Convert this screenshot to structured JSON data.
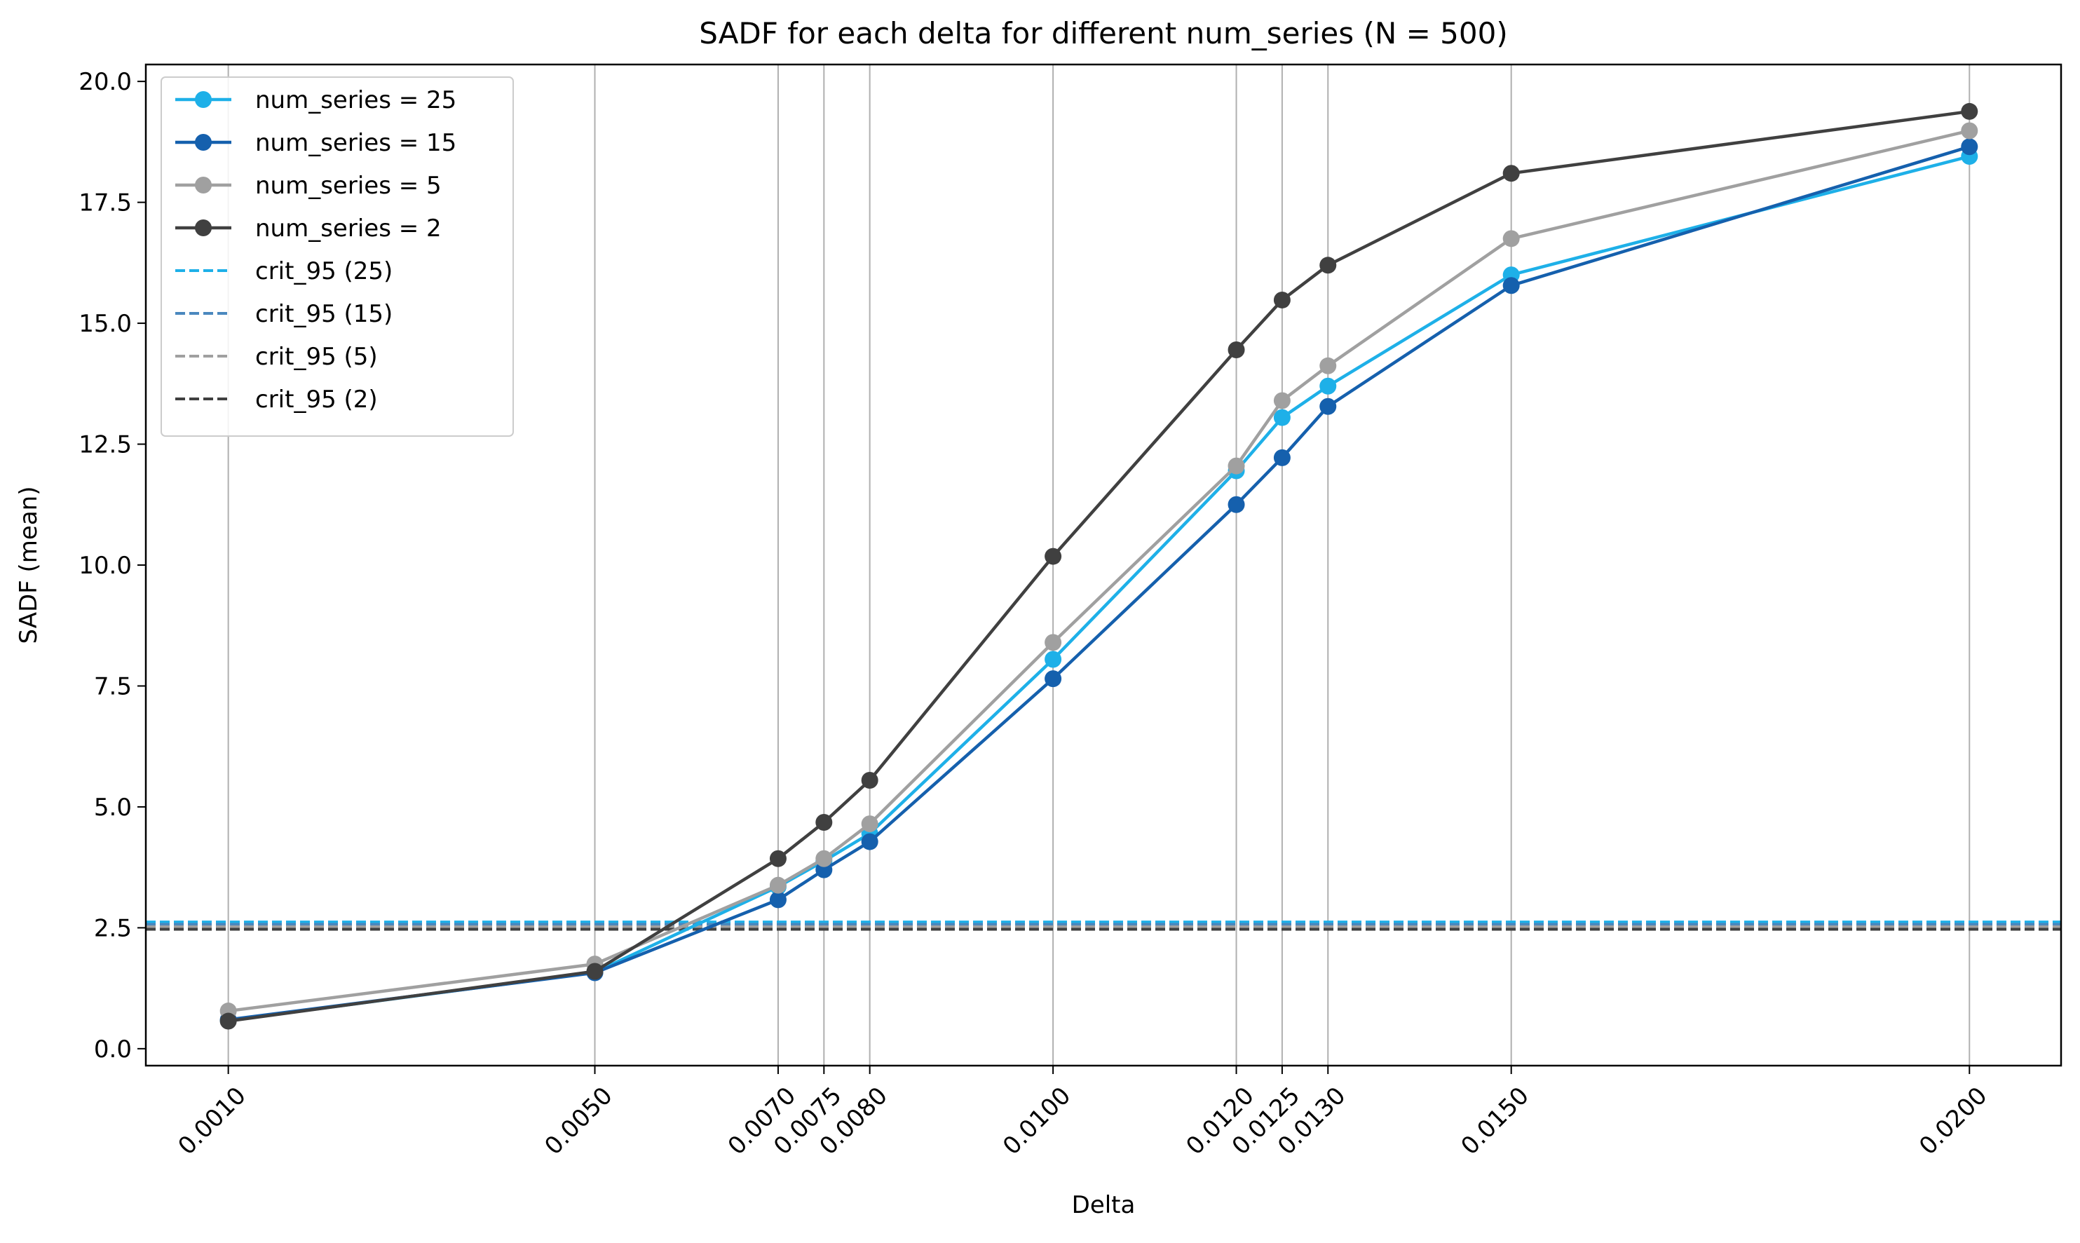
{
  "chart_data": {
    "type": "line",
    "title": "SADF for each delta for different num_series (N = 500)",
    "xlabel": "Delta",
    "ylabel": "SADF (mean)",
    "x": [
      0.001,
      0.005,
      0.007,
      0.0075,
      0.008,
      0.01,
      0.012,
      0.0125,
      0.013,
      0.015,
      0.02
    ],
    "x_tick_labels": [
      "0.0010",
      "0.0050",
      "0.0070",
      "0.0075",
      "0.0080",
      "0.0100",
      "0.0120",
      "0.0125",
      "0.0130",
      "0.0150",
      "0.0200"
    ],
    "xlim": [
      0.0001,
      0.021
    ],
    "ylim": [
      -0.35,
      20.35
    ],
    "y_ticks": [
      0.0,
      2.5,
      5.0,
      7.5,
      10.0,
      12.5,
      15.0,
      17.5,
      20.0
    ],
    "y_tick_labels": [
      "0.0",
      "2.5",
      "5.0",
      "7.5",
      "10.0",
      "12.5",
      "15.0",
      "17.5",
      "20.0"
    ],
    "grid": "vertical lines at x ticks",
    "legend_position": "upper-left",
    "series": [
      {
        "name": "num_series = 25",
        "color": "#1eb0e8",
        "values": [
          0.58,
          1.58,
          3.35,
          3.88,
          4.45,
          8.05,
          11.95,
          13.05,
          13.7,
          16.0,
          18.45
        ]
      },
      {
        "name": "num_series = 15",
        "color": "#1560ad",
        "values": [
          0.6,
          1.57,
          3.08,
          3.7,
          4.28,
          7.65,
          11.25,
          12.22,
          13.28,
          15.78,
          18.65
        ]
      },
      {
        "name": "num_series = 5",
        "color": "#a0a0a0",
        "values": [
          0.78,
          1.75,
          3.38,
          3.93,
          4.65,
          8.4,
          12.05,
          13.4,
          14.12,
          16.75,
          18.98
        ]
      },
      {
        "name": "num_series = 2",
        "color": "#404040",
        "values": [
          0.57,
          1.6,
          3.93,
          4.68,
          5.55,
          10.18,
          14.45,
          15.48,
          16.2,
          18.1,
          19.38
        ]
      }
    ],
    "reference_lines": [
      {
        "name": "crit_95 (25)",
        "color": "#1eb0e8",
        "y": 2.62
      },
      {
        "name": "crit_95 (15)",
        "color": "#4a88be",
        "y": 2.57
      },
      {
        "name": "crit_95 (5)",
        "color": "#a0a0a0",
        "y": 2.52
      },
      {
        "name": "crit_95 (2)",
        "color": "#404040",
        "y": 2.47
      }
    ]
  }
}
